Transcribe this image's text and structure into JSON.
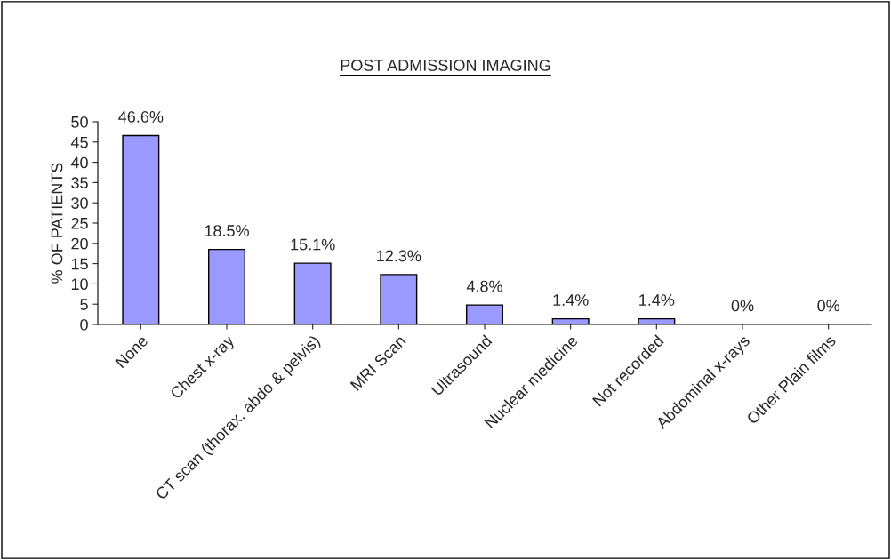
{
  "chart_data": {
    "type": "bar",
    "title": "POST ADMISSION IMAGING",
    "ylabel": "% OF PATIENTS",
    "categories": [
      "None",
      "Chest x-ray",
      "CT scan (thorax, abdo & pelvis)",
      "MRI Scan",
      "Ultrasound",
      "Nuclear medicine",
      "Not recorded",
      "Abdominal x-rays",
      "Other Plain films"
    ],
    "values": [
      46.6,
      18.5,
      15.1,
      12.3,
      4.8,
      1.4,
      1.4,
      0,
      0
    ],
    "value_labels": [
      "46.6%",
      "18.5%",
      "15.1%",
      "12.3%",
      "4.8%",
      "1.4%",
      "1.4%",
      "0%",
      "0%"
    ],
    "color": "#9999ff",
    "ylim": [
      0,
      50
    ],
    "yticks": [
      0,
      5,
      10,
      15,
      20,
      25,
      30,
      35,
      40,
      45,
      50
    ],
    "grid": false
  }
}
